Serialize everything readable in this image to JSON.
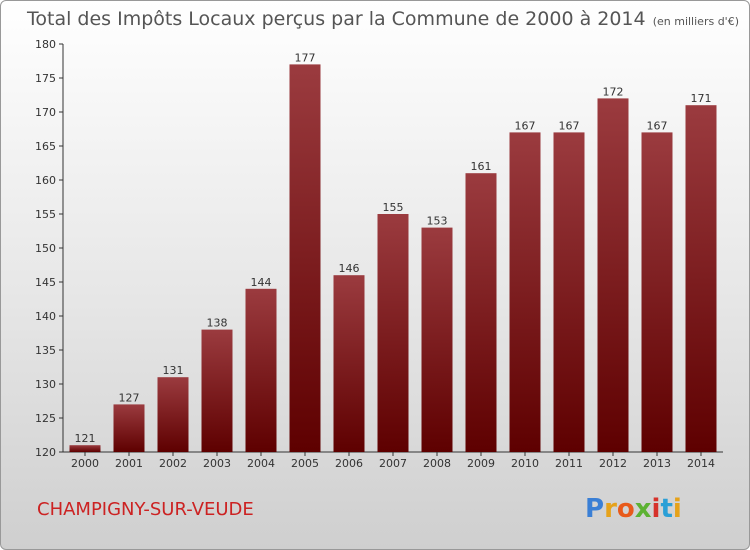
{
  "chart_data": {
    "type": "bar",
    "title": "Total des Impôts Locaux perçus par la Commune de 2000 à 2014",
    "unit": "(en milliers d'€)",
    "categories": [
      "2000",
      "2001",
      "2002",
      "2003",
      "2004",
      "2005",
      "2006",
      "2007",
      "2008",
      "2009",
      "2010",
      "2011",
      "2012",
      "2013",
      "2014"
    ],
    "values": [
      121,
      127,
      131,
      138,
      144,
      177,
      146,
      155,
      153,
      161,
      167,
      167,
      172,
      167,
      171
    ],
    "ylim": [
      120,
      180
    ],
    "yticks": [
      120,
      125,
      130,
      135,
      140,
      145,
      150,
      155,
      160,
      165,
      170,
      175,
      180
    ],
    "xlabel": "",
    "ylabel": "",
    "grid": false,
    "bar_color_top": "#9b3b3f",
    "bar_color_bottom": "#5e0000"
  },
  "commune_name": "CHAMPIGNY-SUR-VEUDE",
  "brand": "Proxiti",
  "colors": {
    "title": "#555555",
    "commune": "#cc2222"
  }
}
